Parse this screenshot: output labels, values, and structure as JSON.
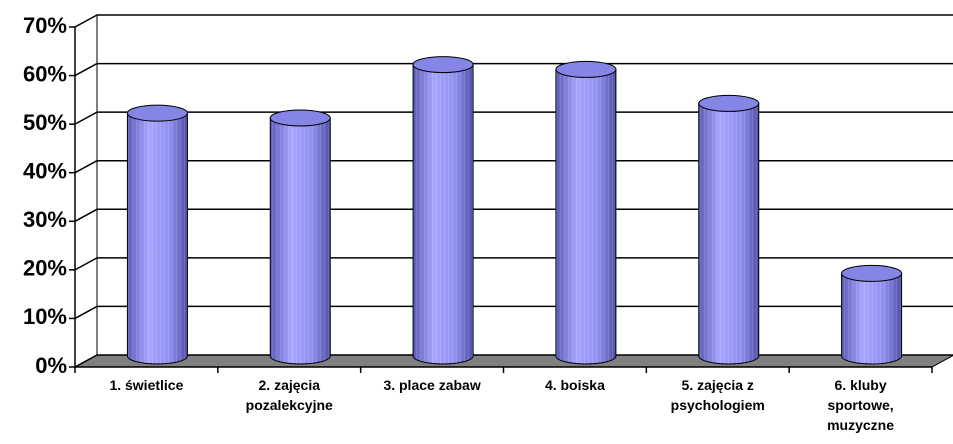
{
  "chart_data": {
    "type": "bar",
    "categories": [
      "1. świetlice",
      "2. zajęcia pozalekcyjne",
      "3. place zabaw",
      "4. boiska",
      "5. zajęcia z psychologiem",
      "6. kluby sportowe, muzyczne"
    ],
    "values": [
      50,
      49,
      60,
      59,
      52,
      17
    ],
    "color": "#9999ff",
    "ylim": [
      0,
      70
    ],
    "yticks": [
      {
        "value": 0,
        "label": "0%"
      },
      {
        "value": 10,
        "label": "10%"
      },
      {
        "value": 20,
        "label": "20%"
      },
      {
        "value": 30,
        "label": "30%"
      },
      {
        "value": 40,
        "label": "40%"
      },
      {
        "value": 50,
        "label": "50%"
      },
      {
        "value": 60,
        "label": "60%"
      },
      {
        "value": 70,
        "label": "70%"
      }
    ],
    "grid": true
  }
}
